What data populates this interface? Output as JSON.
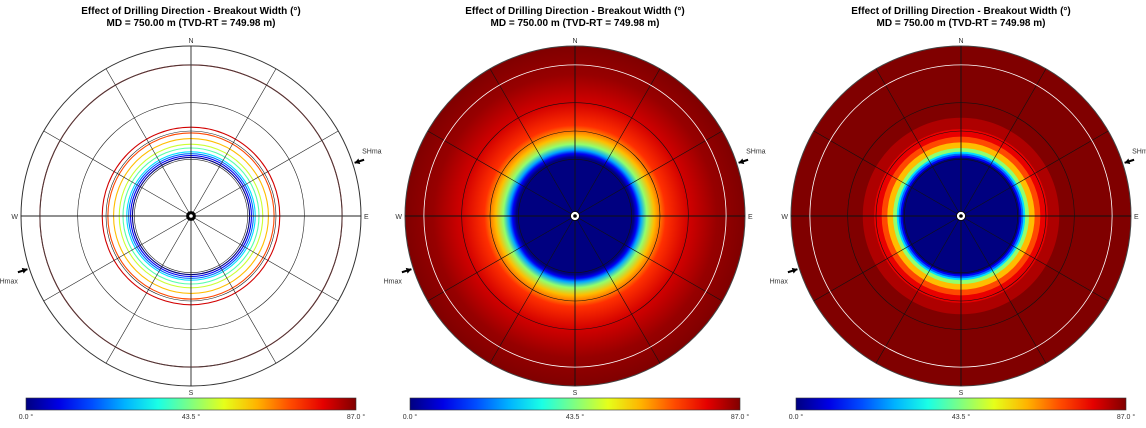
{
  "chart_data": [
    {
      "type": "polar_contour",
      "style": "line contours",
      "title": "Effect of Drilling Direction - Breakout Width (°)",
      "subtitle": "MD = 750.00 m (TVD-RT = 749.98 m)",
      "direction_labels": [
        "N",
        "E",
        "S",
        "W"
      ],
      "stress_label": "SHmax",
      "shmax_azimuth_deg": 72,
      "colorbar": {
        "min_label": "0.0 °",
        "mid_label": "43.5 °",
        "max_label": "87.0 °",
        "min": 0.0,
        "max": 87.0
      },
      "contour_levels": [
        0,
        10,
        20,
        30,
        40,
        50,
        60,
        70,
        80,
        87
      ],
      "contour_inclination_deg": [
        31,
        32,
        33,
        34,
        36,
        38,
        41,
        44,
        47,
        80
      ]
    },
    {
      "type": "polar_contour",
      "style": "smooth fill",
      "title": "Effect of Drilling Direction - Breakout Width (°)",
      "subtitle": "MD = 750.00 m (TVD-RT = 749.98 m)",
      "direction_labels": [
        "N",
        "E",
        "S",
        "W"
      ],
      "stress_label": "SHmax",
      "shmax_azimuth_deg": 72,
      "colorbar": {
        "min_label": "0.0 °",
        "mid_label": "43.5 °",
        "max_label": "87.0 °",
        "min": 0.0,
        "max": 87.0
      },
      "fill_profile": [
        [
          0,
          0
        ],
        [
          31,
          0
        ],
        [
          33,
          10
        ],
        [
          35,
          25
        ],
        [
          38,
          45
        ],
        [
          42,
          60
        ],
        [
          48,
          72
        ],
        [
          60,
          80
        ],
        [
          75,
          85
        ],
        [
          90,
          87
        ]
      ]
    },
    {
      "type": "polar_contour",
      "style": "banded fill",
      "title": "Effect of Drilling Direction - Breakout Width (°)",
      "subtitle": "MD = 750.00 m (TVD-RT = 749.98 m)",
      "direction_labels": [
        "N",
        "E",
        "S",
        "W"
      ],
      "stress_label": "SHmax",
      "shmax_azimuth_deg": 72,
      "colorbar": {
        "min_label": "0.0 °",
        "mid_label": "43.5 °",
        "max_label": "87.0 °",
        "min": 0.0,
        "max": 87.0
      },
      "bands": [
        {
          "from_incl": 0,
          "to_incl": 31,
          "value": 0
        },
        {
          "from_incl": 31,
          "to_incl": 32,
          "value": 10
        },
        {
          "from_incl": 32,
          "to_incl": 33,
          "value": 20
        },
        {
          "from_incl": 33,
          "to_incl": 34,
          "value": 30
        },
        {
          "from_incl": 34,
          "to_incl": 36,
          "value": 45
        },
        {
          "from_incl": 36,
          "to_incl": 39,
          "value": 60
        },
        {
          "from_incl": 39,
          "to_incl": 42,
          "value": 70
        },
        {
          "from_incl": 42,
          "to_incl": 46,
          "value": 78
        },
        {
          "from_incl": 46,
          "to_incl": 52,
          "value": 83
        },
        {
          "from_incl": 52,
          "to_incl": 90,
          "value": 87
        }
      ]
    }
  ]
}
